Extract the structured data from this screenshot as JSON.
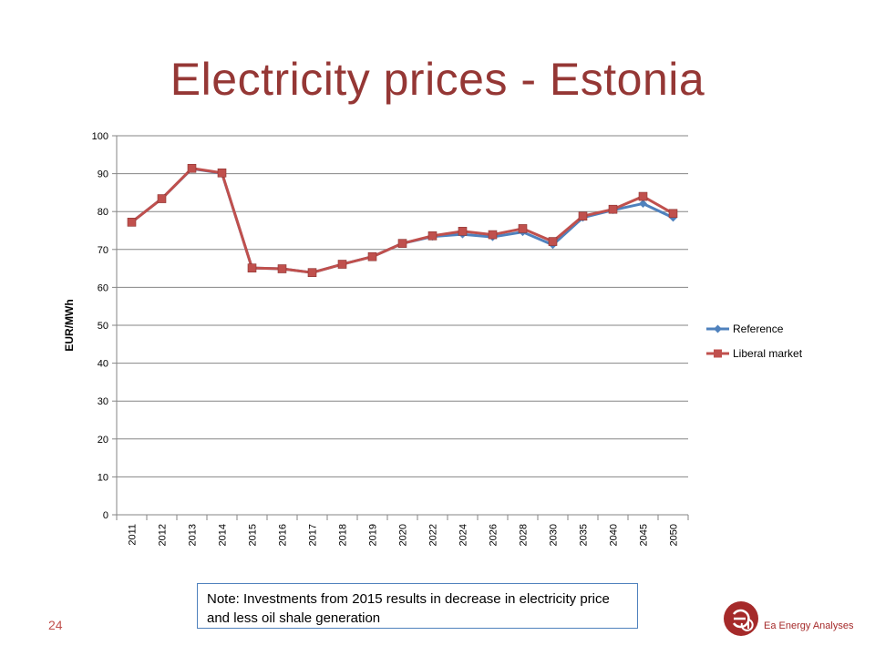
{
  "page": {
    "title": "Electricity prices - Estonia",
    "note": "Note: Investments from 2015 results in decrease in electricity price and less oil shale generation",
    "page_number": "24",
    "logo_text": "Ea Energy Analyses"
  },
  "chart_data": {
    "type": "line",
    "title": "",
    "xlabel": "",
    "ylabel": "EUR/MWh",
    "ylim": [
      0,
      100
    ],
    "yticks": [
      0,
      10,
      20,
      30,
      40,
      50,
      60,
      70,
      80,
      90,
      100
    ],
    "grid": true,
    "legend_position": "right",
    "categories": [
      "2011",
      "2012",
      "2013",
      "2014",
      "2015",
      "2016",
      "2017",
      "2018",
      "2019",
      "2020",
      "2022",
      "2024",
      "2026",
      "2028",
      "2030",
      "2035",
      "2040",
      "2045",
      "2050"
    ],
    "series": [
      {
        "name": "Reference",
        "color": "#4f81bd",
        "marker": "diamond",
        "values": [
          77.2,
          83.4,
          91.3,
          90.1,
          65.1,
          64.9,
          63.9,
          66.1,
          68.1,
          71.6,
          73.4,
          74.0,
          73.3,
          74.6,
          71.2,
          78.4,
          80.4,
          82.1,
          78.4
        ]
      },
      {
        "name": "Liberal market",
        "color": "#c0504d",
        "marker": "square",
        "values": [
          77.2,
          83.4,
          91.4,
          90.2,
          65.1,
          64.9,
          63.9,
          66.1,
          68.1,
          71.6,
          73.6,
          74.8,
          73.9,
          75.5,
          72.1,
          78.8,
          80.6,
          84.0,
          79.5
        ]
      }
    ]
  },
  "colors": {
    "title": "#953735",
    "grid": "#868686",
    "note_border": "#4f81bd",
    "logo": "#a52a2a"
  }
}
